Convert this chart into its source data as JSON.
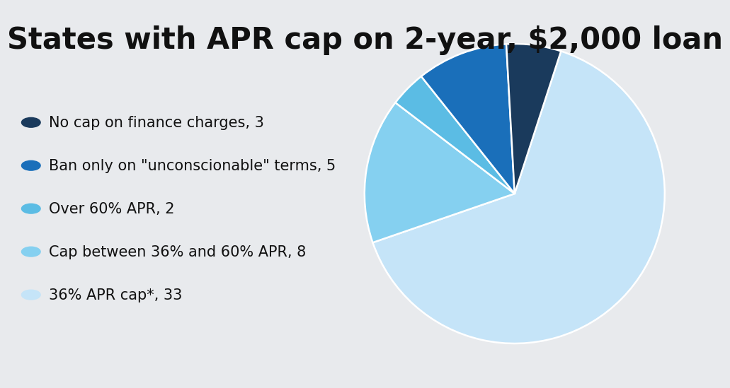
{
  "title": "States with APR cap on 2-year, $2,000 loan",
  "slices": [
    33,
    8,
    2,
    5,
    3
  ],
  "colors": [
    "#c5e4f8",
    "#85d0f0",
    "#5bbce4",
    "#1a6fba",
    "#1a3a5c"
  ],
  "labels": [
    "No cap on finance charges, 3",
    "Ban only on \"unconscionable\" terms, 5",
    "Over 60% APR, 2",
    "Cap between 36% and 60% APR, 8",
    "36% APR cap*, 33"
  ],
  "legend_colors": [
    "#1a3a5c",
    "#1a6fba",
    "#5bbce4",
    "#85d0f0",
    "#c5e4f8"
  ],
  "background_color": "#e8eaed",
  "title_fontsize": 30,
  "legend_fontsize": 15,
  "startangle": 72
}
